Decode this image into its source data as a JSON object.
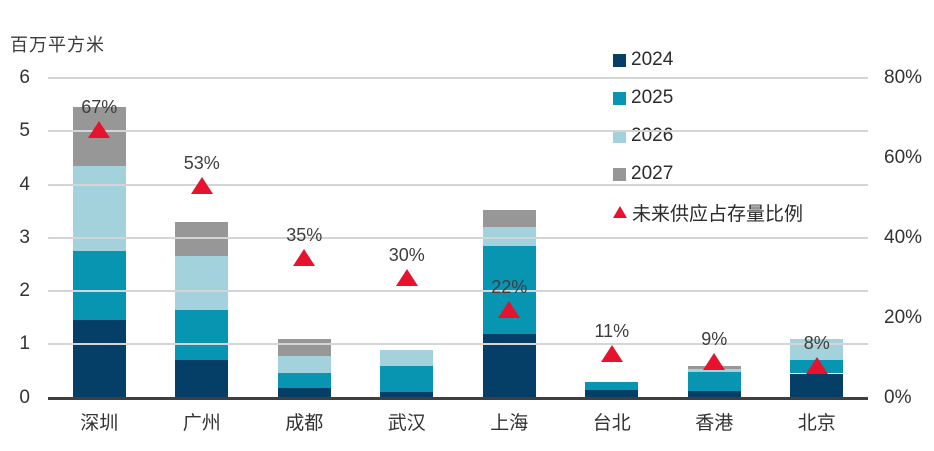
{
  "title": "百万平方米",
  "colors": {
    "background": "#ffffff",
    "gridline": "#d5d5d5",
    "axis_line": "#3f3f3f",
    "text": "#333333",
    "marker_red": "#e6132f"
  },
  "chart_data": {
    "type": "bar",
    "stacked": true,
    "title": "百万平方米",
    "grid": true,
    "legend_position": "top-right-inside",
    "categories": [
      "深圳",
      "广州",
      "成都",
      "武汉",
      "上海",
      "台北",
      "香港",
      "北京"
    ],
    "series": [
      {
        "name": "2024",
        "color": "#053e66",
        "values": [
          1.45,
          0.7,
          0.18,
          0.1,
          1.2,
          0.15,
          0.12,
          0.45
        ]
      },
      {
        "name": "2025",
        "color": "#0795b1",
        "values": [
          1.3,
          0.95,
          0.28,
          0.5,
          1.65,
          0.15,
          0.36,
          0.25
        ]
      },
      {
        "name": "2026",
        "color": "#a3d2dc",
        "values": [
          1.6,
          1.0,
          0.32,
          0.3,
          0.35,
          0,
          0.06,
          0.4
        ]
      },
      {
        "name": "2027",
        "color": "#979797",
        "values": [
          1.1,
          0.65,
          0.32,
          0,
          0.33,
          0,
          0.06,
          0
        ]
      }
    ],
    "marker_series": {
      "name": "未来供应占存量比例",
      "color": "#e6132f",
      "axis": "right",
      "values_pct": [
        67,
        53,
        35,
        30,
        22,
        11,
        9,
        8
      ],
      "labels": [
        "67%",
        "53%",
        "35%",
        "30%",
        "22%",
        "11%",
        "9%",
        "8%"
      ]
    },
    "left_axis": {
      "label": "百万平方米",
      "min": 0,
      "max": 6,
      "ticks": [
        "6",
        "5",
        "4",
        "3",
        "2",
        "1",
        "0"
      ],
      "tick_values": [
        6,
        5,
        4,
        3,
        2,
        1,
        0
      ]
    },
    "right_axis": {
      "min": 0,
      "max": 80,
      "ticks": [
        "80%",
        "60%",
        "40%",
        "20%",
        "0%"
      ],
      "tick_values": [
        80,
        60,
        40,
        20,
        0
      ]
    }
  }
}
